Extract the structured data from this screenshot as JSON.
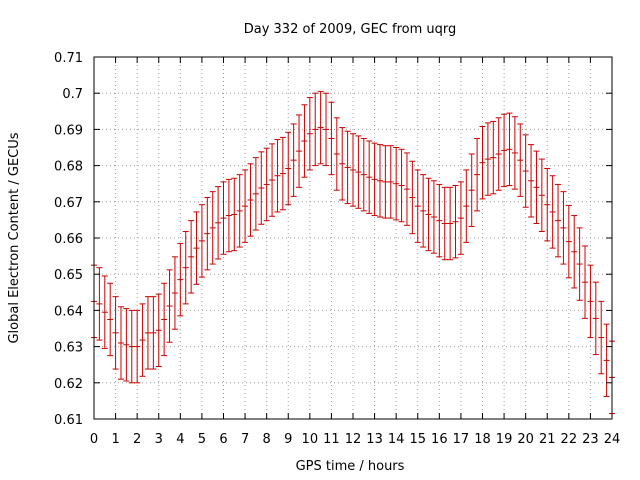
{
  "chart_data": {
    "type": "scatter",
    "style": "errorbars",
    "title": "Day 332 of 2009, GEC from uqrg",
    "xlabel": "GPS time / hours",
    "ylabel": "Global Electron Content / GECUs",
    "xlim": [
      0,
      24
    ],
    "ylim": [
      0.61,
      0.71
    ],
    "xticks": [
      "0",
      "1",
      "2",
      "3",
      "4",
      "5",
      "6",
      "7",
      "8",
      "9",
      "10",
      "11",
      "12",
      "13",
      "14",
      "15",
      "16",
      "17",
      "18",
      "19",
      "20",
      "21",
      "22",
      "23",
      "24"
    ],
    "yticks": [
      "0.61",
      "0.62",
      "0.63",
      "0.64",
      "0.65",
      "0.66",
      "0.67",
      "0.68",
      "0.69",
      "0.7",
      "0.71"
    ],
    "grid": true,
    "color": "#cc0000",
    "x": [
      0,
      0.25,
      0.5,
      0.75,
      1,
      1.25,
      1.5,
      1.75,
      2,
      2.25,
      2.5,
      2.75,
      3,
      3.25,
      3.5,
      3.75,
      4,
      4.25,
      4.5,
      4.75,
      5,
      5.25,
      5.5,
      5.75,
      6,
      6.25,
      6.5,
      6.75,
      7,
      7.25,
      7.5,
      7.75,
      8,
      8.25,
      8.5,
      8.75,
      9,
      9.25,
      9.5,
      9.75,
      10,
      10.25,
      10.5,
      10.75,
      11,
      11.25,
      11.5,
      11.75,
      12,
      12.25,
      12.5,
      12.75,
      13,
      13.25,
      13.5,
      13.75,
      14,
      14.25,
      14.5,
      14.75,
      15,
      15.25,
      15.5,
      15.75,
      16,
      16.25,
      16.5,
      16.75,
      17,
      17.25,
      17.5,
      17.75,
      18,
      18.25,
      18.5,
      18.75,
      19,
      19.25,
      19.5,
      19.75,
      20,
      20.25,
      20.5,
      20.75,
      21,
      21.25,
      21.5,
      21.75,
      22,
      22.25,
      22.5,
      22.75,
      23,
      23.25,
      23.5,
      23.75,
      24
    ],
    "y": [
      0.6425,
      0.6418,
      0.6395,
      0.6375,
      0.6338,
      0.631,
      0.6305,
      0.63,
      0.63,
      0.6318,
      0.6338,
      0.6338,
      0.6345,
      0.6375,
      0.6412,
      0.6448,
      0.6485,
      0.6518,
      0.6548,
      0.6572,
      0.6592,
      0.6612,
      0.6628,
      0.6642,
      0.6655,
      0.6662,
      0.6665,
      0.6675,
      0.6688,
      0.6705,
      0.6722,
      0.6738,
      0.6748,
      0.676,
      0.6772,
      0.6778,
      0.6792,
      0.6815,
      0.684,
      0.6868,
      0.6888,
      0.69,
      0.6905,
      0.69,
      0.6875,
      0.6832,
      0.6805,
      0.6795,
      0.6788,
      0.6782,
      0.6775,
      0.6768,
      0.6762,
      0.6758,
      0.6755,
      0.6755,
      0.675,
      0.6745,
      0.6735,
      0.6712,
      0.6688,
      0.6675,
      0.6665,
      0.6658,
      0.6648,
      0.664,
      0.664,
      0.6645,
      0.6655,
      0.6688,
      0.6732,
      0.6775,
      0.6808,
      0.6818,
      0.6822,
      0.6832,
      0.6842,
      0.6845,
      0.6835,
      0.6815,
      0.6785,
      0.6758,
      0.674,
      0.6718,
      0.6692,
      0.6672,
      0.6648,
      0.6628,
      0.659,
      0.6562,
      0.6528,
      0.6478,
      0.6425,
      0.6378,
      0.6325,
      0.6262,
      0.6215
    ],
    "err": 0.01
  }
}
